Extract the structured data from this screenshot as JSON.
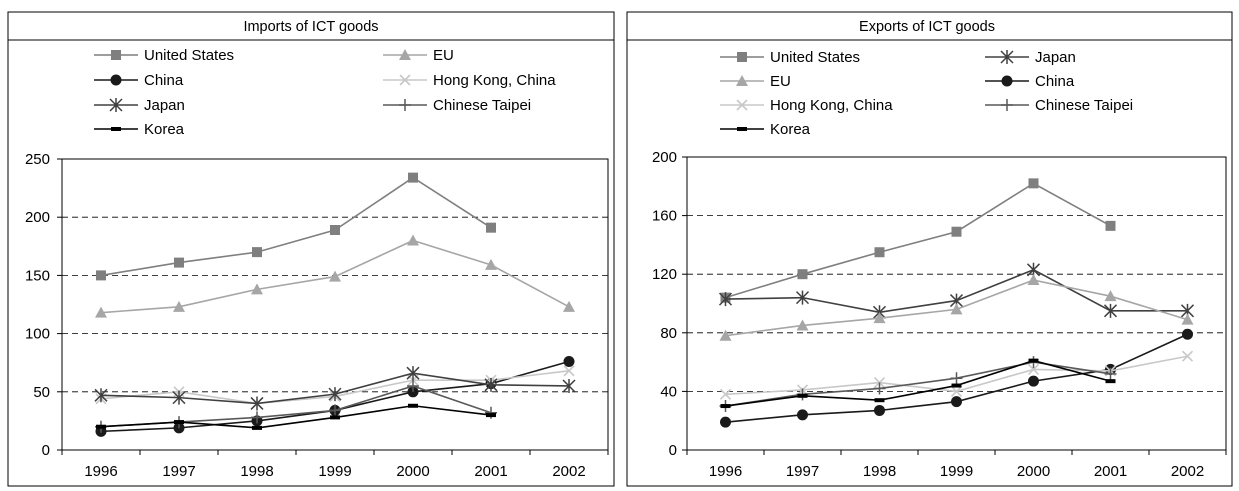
{
  "charts": [
    {
      "type": "line",
      "title": "Imports of ICT goods",
      "categories": [
        "1996",
        "1997",
        "1998",
        "1999",
        "2000",
        "2001",
        "2002"
      ],
      "ylim": [
        0,
        250
      ],
      "yticks": [
        0,
        50,
        100,
        150,
        200,
        250
      ],
      "ytick_labels": [
        "0",
        "50",
        "100",
        "150",
        "200",
        "250"
      ],
      "grid": "dashed horizontal",
      "legend_position": "top",
      "series": [
        {
          "name": "United States",
          "marker": "square",
          "color": "#7f7f7f",
          "values": [
            150,
            161,
            170,
            189,
            234,
            191,
            null
          ]
        },
        {
          "name": "EU",
          "marker": "triangle",
          "color": "#a6a6a6",
          "values": [
            118,
            123,
            138,
            149,
            180,
            159,
            123
          ]
        },
        {
          "name": "China",
          "marker": "circle",
          "color": "#1a1a1a",
          "values": [
            16,
            19,
            25,
            34,
            50,
            57,
            76
          ]
        },
        {
          "name": "Hong Kong, China",
          "marker": "x",
          "color": "#c8c8c8",
          "values": [
            44,
            50,
            40,
            46,
            60,
            60,
            68
          ]
        },
        {
          "name": "Japan",
          "marker": "star",
          "color": "#404040",
          "values": [
            47,
            45,
            40,
            48,
            66,
            56,
            55
          ]
        },
        {
          "name": "Chinese Taipei",
          "marker": "plus",
          "color": "#595959",
          "values": [
            20,
            24,
            28,
            34,
            55,
            32,
            null
          ]
        },
        {
          "name": "Korea",
          "marker": "dash",
          "color": "#000000",
          "values": [
            20,
            24,
            19,
            28,
            38,
            30,
            null
          ]
        }
      ]
    },
    {
      "type": "line",
      "title": "Exports of ICT goods",
      "categories": [
        "1996",
        "1997",
        "1998",
        "1999",
        "2000",
        "2001",
        "2002"
      ],
      "ylim": [
        0,
        200
      ],
      "yticks": [
        0,
        40,
        80,
        120,
        160,
        200
      ],
      "ytick_labels": [
        "0",
        "40",
        "80",
        "120",
        "160",
        "200"
      ],
      "grid": "dashed horizontal",
      "legend_position": "top",
      "series": [
        {
          "name": "United States",
          "marker": "square",
          "color": "#7f7f7f",
          "values": [
            104,
            120,
            135,
            149,
            182,
            153,
            null
          ]
        },
        {
          "name": "Japan",
          "marker": "star",
          "color": "#404040",
          "values": [
            103,
            104,
            94,
            102,
            123,
            95,
            95
          ]
        },
        {
          "name": "EU",
          "marker": "triangle",
          "color": "#a6a6a6",
          "values": [
            78,
            85,
            90,
            96,
            116,
            105,
            89
          ]
        },
        {
          "name": "China",
          "marker": "circle",
          "color": "#1a1a1a",
          "values": [
            19,
            24,
            27,
            33,
            47,
            55,
            79
          ]
        },
        {
          "name": "Hong Kong, China",
          "marker": "x",
          "color": "#c8c8c8",
          "values": [
            38,
            41,
            46,
            40,
            55,
            54,
            64
          ]
        },
        {
          "name": "Chinese Taipei",
          "marker": "plus",
          "color": "#595959",
          "values": [
            30,
            38,
            42,
            49,
            60,
            52,
            null
          ]
        },
        {
          "name": "Korea",
          "marker": "dash",
          "color": "#000000",
          "values": [
            30,
            37,
            34,
            44,
            61,
            47,
            null
          ]
        }
      ]
    }
  ]
}
